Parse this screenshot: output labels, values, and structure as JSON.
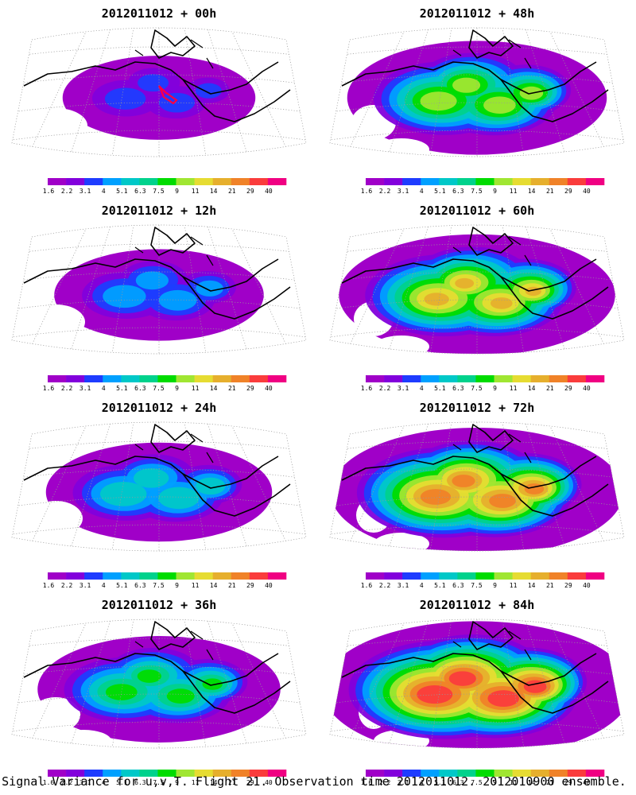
{
  "figure": {
    "caption": "Signal Variance for u,v,T. Flight 21. Observation time 2012011012. 2012010900 ensemble.",
    "colorbar": {
      "ticks": [
        "1.6",
        "2.2",
        "3.1",
        "4",
        "5.1",
        "6.3",
        "7.5",
        "9",
        "11",
        "14",
        "21",
        "29",
        "40"
      ],
      "colors": [
        "#a000c8",
        "#8200dc",
        "#1e3cff",
        "#00a0ff",
        "#00c8c8",
        "#00d28c",
        "#00dc00",
        "#a0e632",
        "#e6dc32",
        "#e6af2d",
        "#f08228",
        "#fa3c3c",
        "#f00082"
      ]
    },
    "panels": [
      {
        "title": "2012011012 + 00h",
        "level": 0
      },
      {
        "title": "2012011012 + 48h",
        "level": 4
      },
      {
        "title": "2012011012 + 12h",
        "level": 1
      },
      {
        "title": "2012011012 + 60h",
        "level": 5
      },
      {
        "title": "2012011012 + 24h",
        "level": 2
      },
      {
        "title": "2012011012 + 72h",
        "level": 6
      },
      {
        "title": "2012011012 + 36h",
        "level": 3
      },
      {
        "title": "2012011012 + 84h",
        "level": 7
      }
    ],
    "flight_track_color": "#ff0040"
  }
}
